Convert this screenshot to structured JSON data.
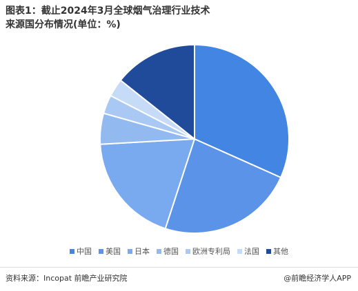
{
  "chart_data": {
    "type": "pie",
    "title": "图表1：截止2024年3月全球烟气治理行业技术来源国分布情况(单位：%)",
    "categories": [
      "中国",
      "美国",
      "日本",
      "德国",
      "欧洲专利局",
      "法国",
      "其他"
    ],
    "values": [
      31.7,
      23.3,
      19.1,
      5.3,
      3.2,
      3.1,
      14.3
    ],
    "colors": [
      "#4285e2",
      "#5a93e8",
      "#79a9ee",
      "#92baf1",
      "#a9c9f4",
      "#c6dbf8",
      "#1f4b9a"
    ],
    "source": "资料来源：Incopat 前瞻产业研究院",
    "brand": "@前瞻经济学人APP"
  }
}
